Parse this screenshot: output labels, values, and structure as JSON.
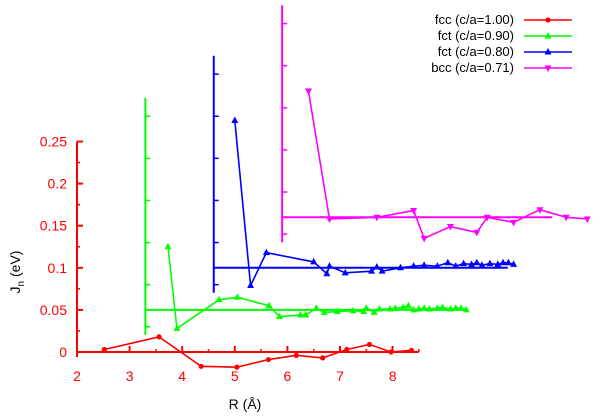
{
  "chart_data": {
    "type": "line",
    "xlabel": "R (Å)",
    "ylabel_main": "J",
    "ylabel_sub": "n",
    "ylabel_unit": " (eV)",
    "xlim": [
      2,
      8.5
    ],
    "ylim": [
      -0.005,
      0.27
    ],
    "x_ticks": [
      "2",
      "3",
      "4",
      "5",
      "6",
      "7",
      "8"
    ],
    "y_ticks": [
      "0",
      "0.05",
      "0.1",
      "0.15",
      "0.2",
      "0.25"
    ],
    "axis_color": "#ff0000",
    "legend_position": "top-right",
    "series": [
      {
        "name": "fcc (c/a=1.00)",
        "color": "#ff0000",
        "marker": "circle",
        "offset_x": 0,
        "offset_y": 0,
        "axis_top": 0.25,
        "points": [
          [
            2.52,
            0.003
          ],
          [
            3.56,
            0.018
          ],
          [
            4.36,
            -0.017
          ],
          [
            5.04,
            -0.018
          ],
          [
            5.64,
            -0.009
          ],
          [
            6.17,
            -0.004
          ],
          [
            6.67,
            -0.007
          ],
          [
            7.13,
            0.003
          ],
          [
            7.56,
            0.009
          ],
          [
            7.97,
            0.0
          ],
          [
            8.36,
            0.002
          ]
        ]
      },
      {
        "name": "fct (c/a=0.90)",
        "color": "#00ff00",
        "marker": "triangle-up",
        "offset_x": 1.3,
        "offset_y": 0.05,
        "axis_top": 0.25,
        "points": [
          [
            2.43,
            0.075
          ],
          [
            2.6,
            -0.022
          ],
          [
            3.4,
            0.012
          ],
          [
            3.75,
            0.015
          ],
          [
            4.35,
            0.005
          ],
          [
            4.55,
            -0.008
          ],
          [
            4.95,
            -0.006
          ],
          [
            5.05,
            -0.006
          ],
          [
            5.25,
            0.002
          ],
          [
            5.4,
            -0.003
          ],
          [
            5.65,
            -0.002
          ],
          [
            5.95,
            -0.001
          ],
          [
            6.15,
            -0.002
          ],
          [
            6.2,
            0.002
          ],
          [
            6.35,
            -0.003
          ],
          [
            6.45,
            0.001
          ],
          [
            6.65,
            0.001
          ],
          [
            6.75,
            0.002
          ],
          [
            6.9,
            0.003
          ],
          [
            7.0,
            0.005
          ],
          [
            7.1,
            0.0
          ],
          [
            7.2,
            0.001
          ],
          [
            7.3,
            0.002
          ],
          [
            7.4,
            0.001
          ],
          [
            7.55,
            0.002
          ],
          [
            7.65,
            0.003
          ],
          [
            7.8,
            0.001
          ],
          [
            7.9,
            0.002
          ],
          [
            8.0,
            0.002
          ],
          [
            8.1,
            0.0
          ]
        ]
      },
      {
        "name": "fct (c/a=0.80)",
        "color": "#0000ff",
        "marker": "triangle-up",
        "offset_x": 2.6,
        "offset_y": 0.1,
        "axis_top": 0.25,
        "points": [
          [
            2.4,
            0.175
          ],
          [
            2.7,
            -0.021
          ],
          [
            3.0,
            0.018
          ],
          [
            3.9,
            0.007
          ],
          [
            4.15,
            -0.007
          ],
          [
            4.2,
            0.002
          ],
          [
            4.5,
            -0.006
          ],
          [
            5.0,
            -0.004
          ],
          [
            5.1,
            0.001
          ],
          [
            5.2,
            -0.004
          ],
          [
            5.55,
            0.0
          ],
          [
            5.8,
            0.002
          ],
          [
            6.0,
            0.003
          ],
          [
            6.25,
            0.002
          ],
          [
            6.45,
            0.006
          ],
          [
            6.6,
            0.002
          ],
          [
            6.75,
            0.005
          ],
          [
            6.9,
            0.004
          ],
          [
            7.0,
            0.006
          ],
          [
            7.1,
            0.003
          ],
          [
            7.25,
            0.005
          ],
          [
            7.4,
            0.004
          ],
          [
            7.5,
            0.006
          ],
          [
            7.6,
            0.006
          ],
          [
            7.7,
            0.004
          ]
        ]
      },
      {
        "name": "bcc (c/a=0.71)",
        "color": "#ff00ff",
        "marker": "triangle-down",
        "offset_x": 3.9,
        "offset_y": 0.16,
        "axis_top": 0.25,
        "points": [
          [
            2.5,
            0.15
          ],
          [
            2.9,
            -0.002
          ],
          [
            3.8,
            0.0
          ],
          [
            4.5,
            0.008
          ],
          [
            4.7,
            -0.025
          ],
          [
            5.2,
            -0.011
          ],
          [
            5.7,
            -0.018
          ],
          [
            5.9,
            0.0
          ],
          [
            6.4,
            -0.006
          ],
          [
            6.9,
            0.009
          ],
          [
            7.4,
            0.0
          ],
          [
            7.8,
            -0.002
          ]
        ]
      }
    ]
  }
}
